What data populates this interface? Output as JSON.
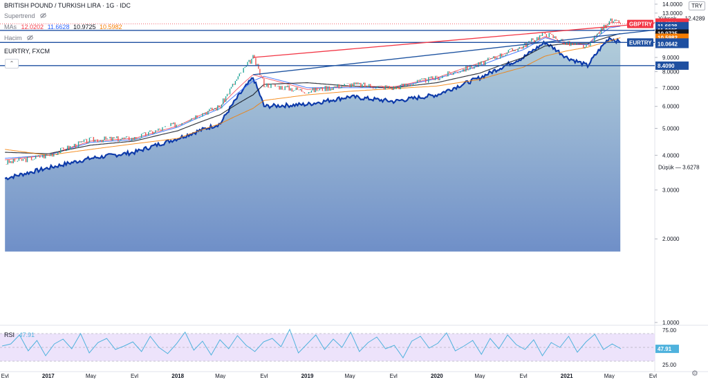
{
  "header": {
    "symbol_title": "BRITISH POUND / TURKISH LIRA · 1G · IDC",
    "supertrend_label": "Supertrend",
    "mas_label": "MAs",
    "mas_values": [
      "12.0202",
      "11.6628",
      "10.9725",
      "10.5982"
    ],
    "volume_label": "Hacim",
    "compare_label": "EURTRY, FXCM",
    "currency_button": "TRY",
    "collapse_icon": "chevron-up-icon"
  },
  "colors": {
    "ma1": "#f23645",
    "ma2": "#2962ff",
    "ma3": "#131722",
    "ma4": "#f57c00",
    "eurtry": "#0d3aa9",
    "area_top": "#a9c7d6",
    "area_bottom": "#6f8fc8",
    "trend_red": "#f23645",
    "trend_blue": "#1e53a0",
    "hline": "#1e4fa0",
    "rsi_line": "#4fb2dd",
    "rsi_band": "#e9dcfa"
  },
  "chart_data": [
    {
      "type": "line",
      "title": "BRITISH POUND / TURKISH LIRA · 1G · IDC",
      "y_scale": "log",
      "ylim": [
        1.0,
        14.0
      ],
      "y_ticks": [
        "14.0000",
        "13.0000",
        "12.0000",
        "11.0000",
        "10.0000",
        "9.0000",
        "8.0000",
        "7.0000",
        "6.0000",
        "5.0000",
        "4.0000",
        "3.0000",
        "2.0000",
        "1.0000"
      ],
      "x_ticks": [
        "Evl",
        "2017",
        "May",
        "Evl",
        "2018",
        "May",
        "Evl",
        "2019",
        "May",
        "Evl",
        "2020",
        "May",
        "Evl",
        "2021",
        "May",
        "Evl"
      ],
      "series": [
        {
          "name": "GBPTRY",
          "x": [
            "2016-09",
            "2017-01",
            "2017-05",
            "2017-09",
            "2018-01",
            "2018-05",
            "2018-08",
            "2018-09",
            "2019-01",
            "2019-05",
            "2019-09",
            "2020-01",
            "2020-05",
            "2020-09",
            "2020-11",
            "2021-01",
            "2021-03",
            "2021-05",
            "2021-06"
          ],
          "values": [
            3.75,
            4.0,
            4.55,
            4.6,
            5.2,
            6.0,
            9.0,
            7.2,
            6.8,
            7.2,
            7.0,
            7.6,
            8.5,
            9.9,
            11.0,
            10.1,
            9.8,
            12.2,
            11.88
          ]
        },
        {
          "name": "EURTRY",
          "x": [
            "2016-09",
            "2017-01",
            "2017-05",
            "2017-09",
            "2018-01",
            "2018-05",
            "2018-08",
            "2018-09",
            "2019-01",
            "2019-05",
            "2019-09",
            "2020-01",
            "2020-05",
            "2020-09",
            "2020-11",
            "2021-01",
            "2021-03",
            "2021-05",
            "2021-06"
          ],
          "values": [
            3.3,
            3.6,
            3.9,
            4.1,
            4.6,
            5.2,
            7.6,
            6.0,
            6.1,
            6.5,
            6.25,
            6.6,
            7.6,
            9.0,
            10.2,
            9.0,
            8.4,
            10.6,
            10.19
          ]
        },
        {
          "name": "MA 12.0202",
          "values": [
            3.85,
            4.0,
            4.5,
            4.6,
            5.1,
            6.0,
            7.8,
            7.6,
            6.9,
            7.1,
            7.05,
            7.6,
            8.6,
            9.8,
            10.7,
            10.0,
            10.0,
            12.0,
            12.02
          ]
        },
        {
          "name": "MA 11.6628",
          "values": [
            3.9,
            4.0,
            4.45,
            4.55,
            5.05,
            5.9,
            7.4,
            7.7,
            7.0,
            7.0,
            7.0,
            7.55,
            8.4,
            9.6,
            10.6,
            10.1,
            10.0,
            11.5,
            11.66
          ]
        },
        {
          "name": "MA 10.9725",
          "values": [
            4.1,
            4.05,
            4.35,
            4.5,
            4.9,
            5.6,
            6.6,
            7.2,
            7.3,
            7.1,
            7.0,
            7.3,
            7.9,
            9.0,
            9.9,
            10.1,
            10.1,
            10.7,
            10.97
          ]
        },
        {
          "name": "MA 10.5982",
          "values": [
            4.2,
            4.0,
            4.2,
            4.4,
            4.6,
            5.2,
            5.9,
            6.3,
            6.6,
            6.8,
            6.95,
            7.1,
            7.5,
            8.3,
            9.1,
            9.5,
            9.8,
            10.3,
            10.6
          ]
        }
      ],
      "horizontal_lines": [
        11.2625,
        10.1905,
        8.409
      ],
      "trendlines": [
        {
          "name": "upper",
          "from": [
            "2018-08",
            9.0
          ],
          "to": [
            "2021-07",
            12.0
          ]
        },
        {
          "name": "lower",
          "from": [
            "2018-08",
            7.8
          ],
          "to": [
            "2021-07",
            11.3
          ]
        }
      ],
      "price_labels": [
        {
          "text": "Yüksek  — 12.4289",
          "kind": "plain"
        },
        {
          "text": "12.0202",
          "kind": "ma1"
        },
        {
          "text": "GBPTRY",
          "kind": "tag_ma1"
        },
        {
          "text": "11.8798",
          "kind": "ma1"
        },
        {
          "text": "11.6628",
          "kind": "hline"
        },
        {
          "text": "11.2625",
          "kind": "hline"
        },
        {
          "text": "10.9725",
          "kind": "ma3"
        },
        {
          "text": "10.5982",
          "kind": "ma4"
        },
        {
          "text": "EURTRY",
          "kind": "tag_hline"
        },
        {
          "text": "10.1905",
          "kind": "hline"
        },
        {
          "text": "10.0642",
          "kind": "hline"
        },
        {
          "text": "8.4090",
          "kind": "hline"
        },
        {
          "text": "Düşük  — 3.6278",
          "kind": "plain"
        }
      ]
    },
    {
      "type": "line",
      "title": "RSI",
      "ylim": [
        25,
        75
      ],
      "y_ticks": [
        "75.00",
        "50.00",
        "25.00"
      ],
      "band": [
        30,
        70
      ],
      "last_value": "47.91",
      "series": [
        {
          "name": "RSI",
          "values": [
            52,
            55,
            68,
            45,
            60,
            38,
            55,
            62,
            48,
            70,
            42,
            57,
            63,
            47,
            52,
            58,
            44,
            66,
            50,
            41,
            55,
            72,
            46,
            59,
            39,
            61,
            48,
            67,
            53,
            44,
            58,
            63,
            51,
            76,
            42,
            55,
            68,
            47,
            62,
            50,
            72,
            44,
            57,
            65,
            48,
            53,
            35,
            59,
            66,
            49,
            56,
            71,
            45,
            52,
            60,
            40,
            63,
            48,
            68,
            54,
            47,
            61,
            38,
            57,
            50,
            66,
            43,
            58,
            69,
            47,
            55,
            48
          ]
        }
      ]
    }
  ],
  "rsi_header": {
    "label": "RSI",
    "value": "47.91"
  }
}
